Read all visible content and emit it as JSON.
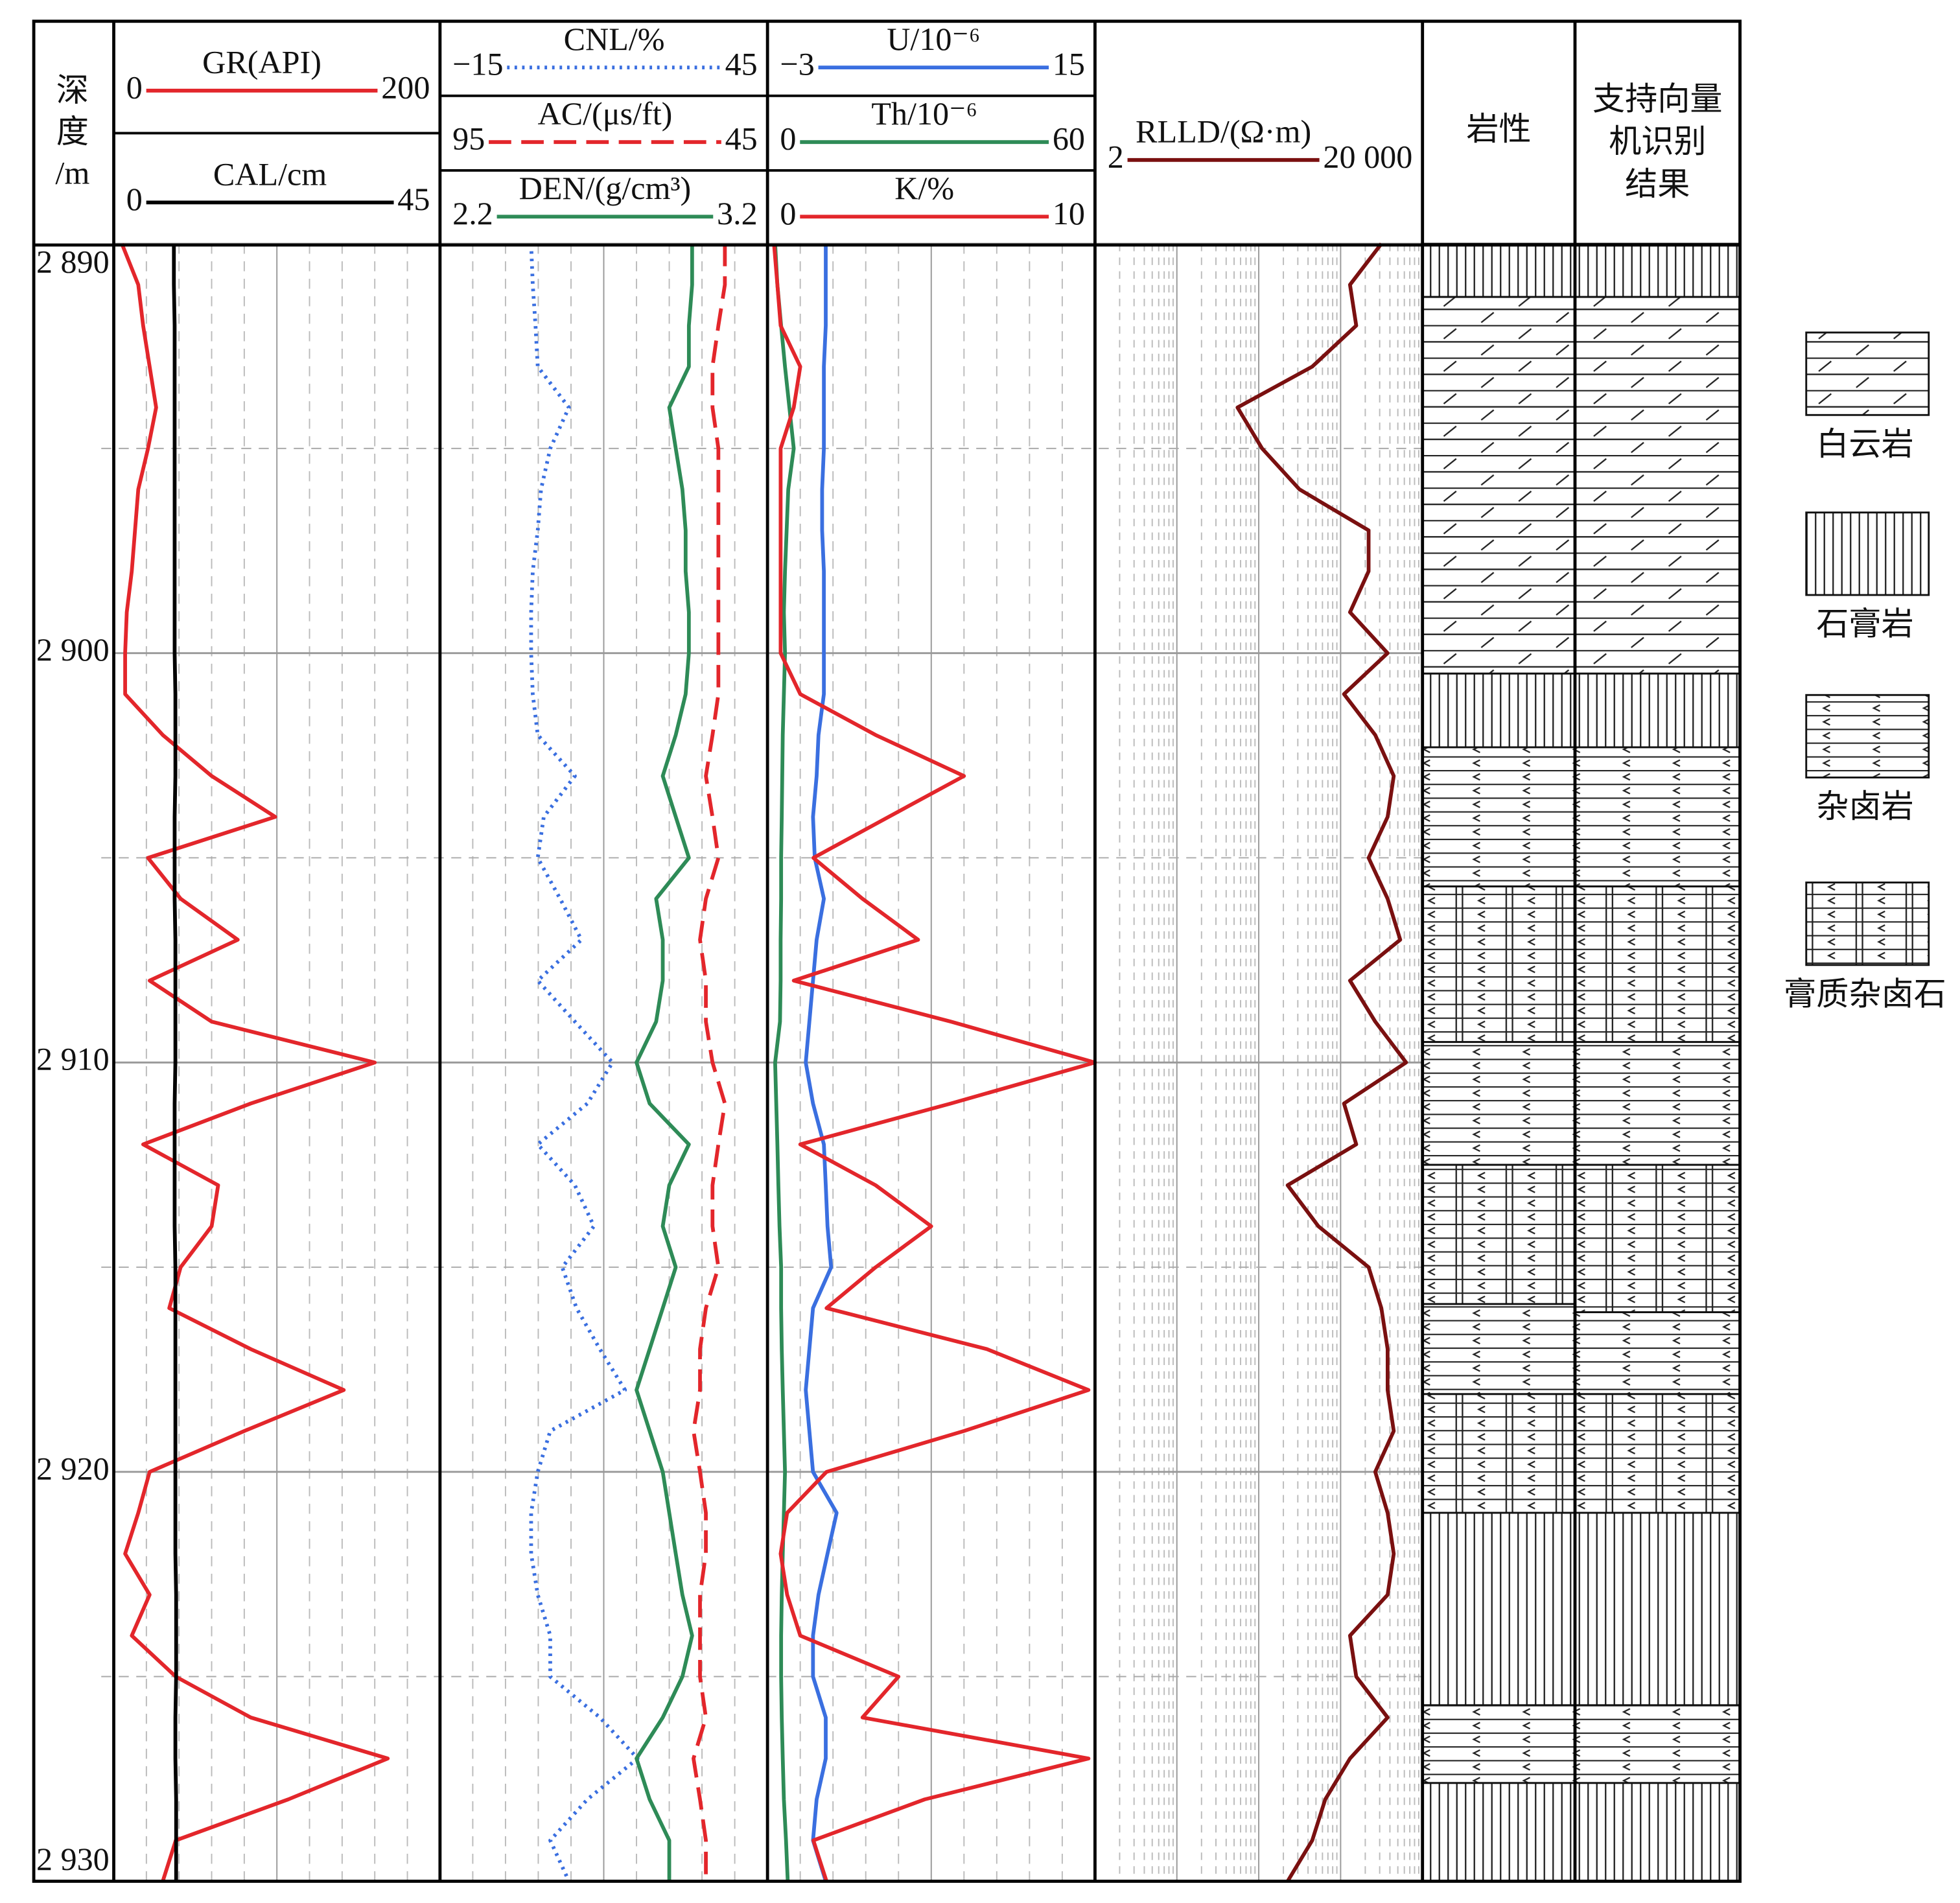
{
  "chart_data": {
    "type": "well_log",
    "depth_label": [
      "深",
      "度",
      "/m"
    ],
    "ylim": [
      2890,
      2930
    ],
    "yticks": [
      {
        "value": 2890,
        "label": "2 890"
      },
      {
        "value": 2900,
        "label": "2 900"
      },
      {
        "value": 2910,
        "label": "2 910"
      },
      {
        "value": 2920,
        "label": "2 920"
      },
      {
        "value": 2930,
        "label": "2 930"
      }
    ],
    "minor_yticks": [
      2895,
      2905,
      2915,
      2925
    ],
    "depths": [
      2890,
      2891,
      2892,
      2893,
      2894,
      2895,
      2896,
      2897,
      2898,
      2899,
      2900,
      2901,
      2902,
      2903,
      2904,
      2905,
      2906,
      2907,
      2908,
      2909,
      2910,
      2911,
      2912,
      2913,
      2914,
      2915,
      2916,
      2917,
      2918,
      2919,
      2920,
      2921,
      2922,
      2923,
      2924,
      2925,
      2926,
      2927,
      2928,
      2929,
      2930
    ],
    "tracks": [
      {
        "curves": [
          {
            "name": "GR(API)",
            "color": "#e3262b",
            "dash": "solid",
            "scale": [
              0,
              200
            ],
            "values": [
              5,
              15,
              18,
              22,
              26,
              21,
              15,
              13,
              11,
              8,
              7,
              7,
              30,
              60,
              99,
              21,
              41,
              76,
              22,
              60,
              160,
              84,
              18,
              64,
              60,
              41,
              34,
              84,
              141,
              80,
              22,
              15,
              7,
              22,
              11,
              38,
              84,
              168,
              107,
              38,
              30
            ]
          },
          {
            "name": "CAL/cm",
            "color": "#000000",
            "dash": "solid",
            "scale": [
              0,
              45
            ],
            "values": [
              8.3,
              8.3,
              8.4,
              8.4,
              8.4,
              8.4,
              8.4,
              8.4,
              8.4,
              8.4,
              8.4,
              8.5,
              8.5,
              8.5,
              8.4,
              8.4,
              8.4,
              8.5,
              8.5,
              8.5,
              8.5,
              8.4,
              8.4,
              8.4,
              8.4,
              8.5,
              8.5,
              8.5,
              8.5,
              8.5,
              8.5,
              8.5,
              8.5,
              8.6,
              8.6,
              8.6,
              8.5,
              8.5,
              8.6,
              8.6,
              8.6
            ]
          }
        ]
      },
      {
        "curves": [
          {
            "name": "CNL/%",
            "color": "#3a6fe0",
            "dash": "dotted",
            "scale": [
              {
                "value": -15,
                "label": "−15"
              },
              45
            ],
            "values": [
              1.7,
              2.0,
              2.5,
              2.9,
              8.6,
              5.2,
              3.5,
              2.9,
              2.0,
              1.7,
              1.7,
              2.0,
              2.9,
              9.7,
              4.0,
              2.9,
              7.0,
              10.9,
              2.9,
              9.7,
              16.6,
              12.0,
              2.9,
              9.7,
              13.2,
              7.4,
              10.0,
              14.3,
              18.9,
              5.2,
              2.9,
              1.7,
              1.7,
              2.9,
              5.2,
              5.2,
              14.3,
              21.2,
              12.0,
              5.2,
              8.6
            ]
          },
          {
            "name": "AC/(μs/ft)",
            "color": "#e3262b",
            "dash": "dashed",
            "scale": [
              95,
              45
            ],
            "values": [
              51.5,
              51.5,
              52.5,
              53.4,
              53.4,
              52.5,
              52.5,
              52.5,
              52.5,
              52.5,
              52.5,
              52.5,
              53.4,
              54.4,
              53.4,
              52.5,
              54.4,
              55.3,
              54.4,
              54.4,
              53.4,
              51.5,
              52.5,
              53.4,
              53.4,
              52.5,
              54.4,
              55.3,
              55.3,
              56.3,
              55.3,
              54.4,
              54.4,
              55.3,
              55.3,
              55.3,
              54.4,
              56.3,
              55.3,
              54.4,
              54.4
            ]
          },
          {
            "name": "DEN/(g/cm³)",
            "color": "#2e8b57",
            "dash": "solid",
            "scale": [
              2.2,
              3.2
            ],
            "values": [
              2.97,
              2.97,
              2.96,
              2.96,
              2.9,
              2.92,
              2.94,
              2.95,
              2.95,
              2.96,
              2.96,
              2.95,
              2.92,
              2.88,
              2.92,
              2.96,
              2.86,
              2.88,
              2.88,
              2.86,
              2.8,
              2.84,
              2.96,
              2.9,
              2.88,
              2.92,
              2.88,
              2.84,
              2.8,
              2.84,
              2.88,
              2.9,
              2.92,
              2.94,
              2.97,
              2.94,
              2.88,
              2.8,
              2.84,
              2.9,
              2.9
            ]
          }
        ]
      },
      {
        "curves": [
          {
            "name": "U/10⁻⁶",
            "color": "#3a6fe0",
            "dash": "solid",
            "scale": [
              {
                "value": -3,
                "label": "−3"
              },
              15
            ],
            "values": [
              0.2,
              0.2,
              0.2,
              0.1,
              0.1,
              0.1,
              0.0,
              0.0,
              0.1,
              0.1,
              0.1,
              0.1,
              -0.2,
              -0.3,
              -0.5,
              -0.4,
              0.1,
              -0.3,
              -0.5,
              -0.7,
              -0.9,
              -0.5,
              0.1,
              0.2,
              0.3,
              0.5,
              -0.5,
              -0.7,
              -0.9,
              -0.7,
              -0.5,
              0.8,
              0.3,
              -0.2,
              -0.5,
              -0.5,
              0.2,
              0.2,
              -0.3,
              -0.5,
              0.2
            ]
          },
          {
            "name": "Th/10⁻⁶",
            "color": "#2e8b57",
            "dash": "solid",
            "scale": [
              0,
              60
            ],
            "values": [
              1.4,
              1.8,
              2.5,
              3.2,
              4.0,
              4.8,
              3.8,
              3.5,
              3.2,
              3.0,
              3.2,
              3.0,
              2.8,
              2.7,
              2.6,
              2.5,
              2.5,
              2.4,
              2.4,
              2.3,
              1.4,
              1.6,
              1.8,
              2.0,
              2.2,
              2.5,
              2.5,
              2.6,
              2.8,
              3.0,
              3.2,
              3.0,
              2.8,
              2.6,
              2.5,
              2.5,
              2.6,
              2.8,
              3.0,
              3.4,
              3.7
            ]
          },
          {
            "name": "K/%",
            "color": "#e3262b",
            "dash": "solid",
            "scale": [
              0,
              10
            ],
            "values": [
              0.2,
              0.3,
              0.4,
              1.0,
              0.8,
              0.4,
              0.4,
              0.4,
              0.4,
              0.4,
              0.4,
              1.0,
              3.3,
              6.0,
              3.7,
              1.4,
              2.9,
              4.6,
              0.8,
              5.6,
              10.0,
              5.6,
              1.0,
              3.3,
              5.0,
              3.3,
              1.8,
              6.7,
              9.8,
              6.0,
              1.8,
              0.6,
              0.4,
              0.6,
              1.0,
              4.0,
              2.9,
              9.8,
              4.8,
              1.4,
              1.8
            ]
          }
        ]
      },
      {
        "log": true,
        "curves": [
          {
            "name": "RLLD/(Ω·m)",
            "color": "#7a1010",
            "dash": "solid",
            "scale": [
              2,
              {
                "value": 20000,
                "label": "20 000"
              }
            ],
            "values": [
              6300,
              2600,
              3100,
              900,
              110,
              220,
              630,
              4400,
              4400,
              2600,
              7500,
              2200,
              5300,
              8900,
              7500,
              4400,
              7500,
              10700,
              2600,
              5300,
              12600,
              2200,
              3100,
              450,
              1070,
              4400,
              6300,
              7500,
              7500,
              8900,
              5300,
              7500,
              8900,
              7500,
              2600,
              3100,
              7500,
              2600,
              1300,
              900,
              450
            ]
          }
        ]
      }
    ],
    "lithology": {
      "title": "岩性",
      "intervals": [
        {
          "top": 2890,
          "bottom": 2891.3,
          "type": "石膏岩"
        },
        {
          "top": 2891.3,
          "bottom": 2900.5,
          "type": "白云岩"
        },
        {
          "top": 2900.5,
          "bottom": 2902.3,
          "type": "石膏岩"
        },
        {
          "top": 2902.3,
          "bottom": 2905.7,
          "type": "杂卤岩"
        },
        {
          "top": 2905.7,
          "bottom": 2909.5,
          "type": "膏质杂卤石"
        },
        {
          "top": 2909.5,
          "bottom": 2912.5,
          "type": "杂卤岩"
        },
        {
          "top": 2912.5,
          "bottom": 2915.9,
          "type": "膏质杂卤石"
        },
        {
          "top": 2915.9,
          "bottom": 2918.1,
          "type": "杂卤岩"
        },
        {
          "top": 2918.1,
          "bottom": 2921,
          "type": "膏质杂卤石"
        },
        {
          "top": 2921,
          "bottom": 2925.7,
          "type": "石膏岩"
        },
        {
          "top": 2925.7,
          "bottom": 2927.6,
          "type": "杂卤岩"
        },
        {
          "top": 2927.6,
          "bottom": 2930,
          "type": "石膏岩"
        }
      ]
    },
    "svm": {
      "title": [
        "支持向量",
        "机识别",
        "结果"
      ],
      "intervals": [
        {
          "top": 2890,
          "bottom": 2891.3,
          "type": "石膏岩"
        },
        {
          "top": 2891.3,
          "bottom": 2900.5,
          "type": "白云岩"
        },
        {
          "top": 2900.5,
          "bottom": 2902.3,
          "type": "石膏岩"
        },
        {
          "top": 2902.3,
          "bottom": 2905.7,
          "type": "杂卤岩"
        },
        {
          "top": 2905.7,
          "bottom": 2909.5,
          "type": "膏质杂卤石"
        },
        {
          "top": 2909.5,
          "bottom": 2912.5,
          "type": "杂卤岩"
        },
        {
          "top": 2912.5,
          "bottom": 2916.1,
          "type": "膏质杂卤石"
        },
        {
          "top": 2916.1,
          "bottom": 2918.1,
          "type": "杂卤岩"
        },
        {
          "top": 2918.1,
          "bottom": 2921,
          "type": "膏质杂卤石"
        },
        {
          "top": 2921,
          "bottom": 2925.7,
          "type": "石膏岩"
        },
        {
          "top": 2925.7,
          "bottom": 2927.6,
          "type": "杂卤岩"
        },
        {
          "top": 2927.6,
          "bottom": 2930,
          "type": "石膏岩"
        }
      ]
    },
    "legend": [
      {
        "label": "白云岩",
        "pattern": "dolomite"
      },
      {
        "label": "石膏岩",
        "pattern": "gypsum"
      },
      {
        "label": "杂卤岩",
        "pattern": "halite"
      },
      {
        "label": "膏质杂卤石",
        "pattern": "gypseous"
      }
    ]
  }
}
